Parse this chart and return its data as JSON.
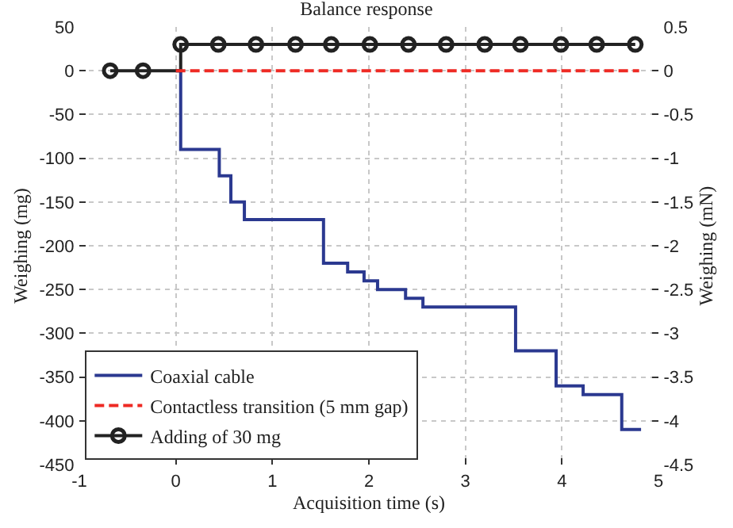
{
  "chart_data": {
    "type": "line",
    "title": "Balance response",
    "xlabel": "Acquisition time (s)",
    "ylabel": "Weighing (mg)",
    "y2label": "Weighing (mN)",
    "series": [
      {
        "name": "Coaxial cable",
        "color": "#2b3990",
        "type": "step",
        "marker": "none",
        "line_style": "solid",
        "x": [
          0,
          0.05,
          0.45,
          0.57,
          0.71,
          1.53,
          1.78,
          1.95,
          2.09,
          2.38,
          2.56,
          3.52,
          3.94,
          4.22,
          4.62,
          4.82
        ],
        "values": [
          0,
          -90,
          -120,
          -150,
          -170,
          -220,
          -230,
          -240,
          -250,
          -260,
          -270,
          -320,
          -360,
          -370,
          -410,
          -410
        ]
      },
      {
        "name": "Contactless transition (5 mm gap)",
        "color": "#ee2a24",
        "marker": "none",
        "line_style": "dashed",
        "x": [
          0,
          4.8
        ],
        "values": [
          0,
          0
        ]
      },
      {
        "name": "Adding of 30 mg",
        "color": "#222222",
        "type": "step",
        "marker": "circle",
        "line_style": "solid",
        "x": [
          -0.68,
          -0.34,
          0.05,
          0.44,
          0.83,
          1.24,
          1.61,
          2.01,
          2.41,
          2.8,
          3.2,
          3.57,
          3.99,
          4.36,
          4.76
        ],
        "values": [
          0,
          0,
          30,
          30,
          30,
          30,
          30,
          30,
          30,
          30,
          30,
          30,
          30,
          30,
          30
        ]
      }
    ],
    "xlim": [
      -1,
      5
    ],
    "xticks": [
      -1,
      0,
      1,
      2,
      3,
      4,
      5
    ],
    "ylim": [
      -450,
      50
    ],
    "yticks": [
      -450,
      -400,
      -350,
      -300,
      -250,
      -200,
      -150,
      -100,
      -50,
      0,
      50
    ],
    "y2lim": [
      -4.5,
      0.5
    ],
    "y2ticks": [
      -4.5,
      -4,
      -3.5,
      -3,
      -2.5,
      -2,
      -1.5,
      -1,
      -0.5,
      0,
      0.5
    ],
    "grid": true,
    "legend": "bottom left"
  }
}
